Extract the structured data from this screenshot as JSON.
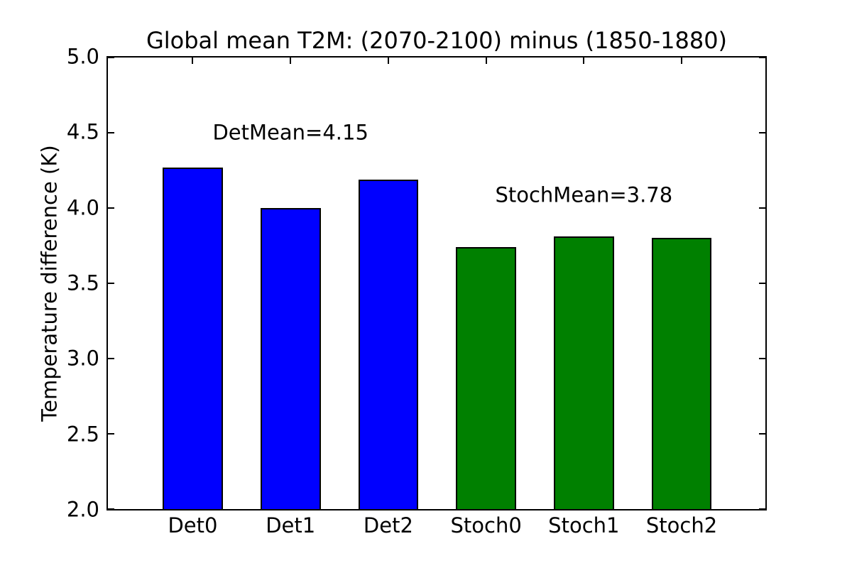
{
  "chart_data": {
    "type": "bar",
    "title": "Global mean T2M: (2070-2100) minus (1850-1880)",
    "xlabel": "",
    "ylabel": "Temperature difference (K)",
    "categories": [
      "Det0",
      "Det1",
      "Det2",
      "Stoch0",
      "Stoch1",
      "Stoch2"
    ],
    "values": [
      4.27,
      4.0,
      4.19,
      3.74,
      3.81,
      3.8
    ],
    "bar_colors": [
      "#0000ff",
      "#0000ff",
      "#0000ff",
      "#008000",
      "#008000",
      "#008000"
    ],
    "bar_edge_color": "#000000",
    "ylim": [
      2.0,
      5.0
    ],
    "yticks": [
      5.0,
      4.5,
      4.0,
      3.5,
      3.0,
      2.5,
      2.0
    ],
    "ytick_labels": [
      "5.0",
      "4.5",
      "4.0",
      "3.5",
      "3.0",
      "2.5",
      "2.0"
    ],
    "grid": false,
    "legend": null,
    "background_color": "#ffffff",
    "annotations": [
      {
        "text": "DetMean=4.15",
        "x_index": 1,
        "y_value": 4.5
      },
      {
        "text": "StochMean=3.78",
        "x_index": 4,
        "y_value": 4.085
      }
    ]
  }
}
